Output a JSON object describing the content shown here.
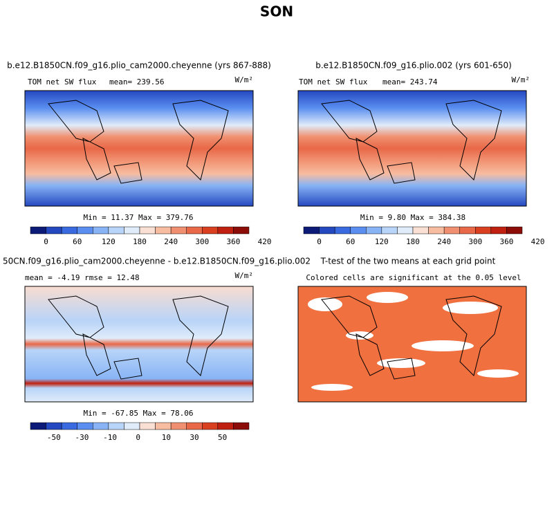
{
  "title": "SON",
  "panels": [
    {
      "title": "b.e12.B1850CN.f09_g16.plio_cam2000.cheyenne (yrs 867-888)",
      "variable": "TOM net SW flux",
      "stat": "mean= 239.56",
      "units": "W/m²",
      "minmax": "Min =  11.37 Max = 379.76",
      "colorbar_labels": [
        "0",
        "60",
        "120",
        "180",
        "240",
        "300",
        "360",
        "420"
      ]
    },
    {
      "title": "b.e12.B1850CN.f09_g16.plio.002 (yrs 601-650)",
      "variable": "TOM net SW flux",
      "stat": "mean= 243.74",
      "units": "W/m²",
      "minmax": "Min =   9.80 Max = 384.38",
      "colorbar_labels": [
        "0",
        "60",
        "120",
        "180",
        "240",
        "300",
        "360",
        "420"
      ]
    },
    {
      "title": "50CN.f09_g16.plio_cam2000.cheyenne - b.e12.B1850CN.f09_g16.plio.002",
      "stat": "mean =  -4.19    rmse =  12.48",
      "units": "W/m²",
      "minmax": "Min = -67.85 Max =  78.06",
      "colorbar_labels": [
        "-50",
        "-30",
        "-10",
        "0",
        "10",
        "30",
        "50"
      ]
    },
    {
      "title": "T-test of the two means at each grid point",
      "subtitle": "Colored cells are significant at the 0.05 level"
    }
  ]
}
